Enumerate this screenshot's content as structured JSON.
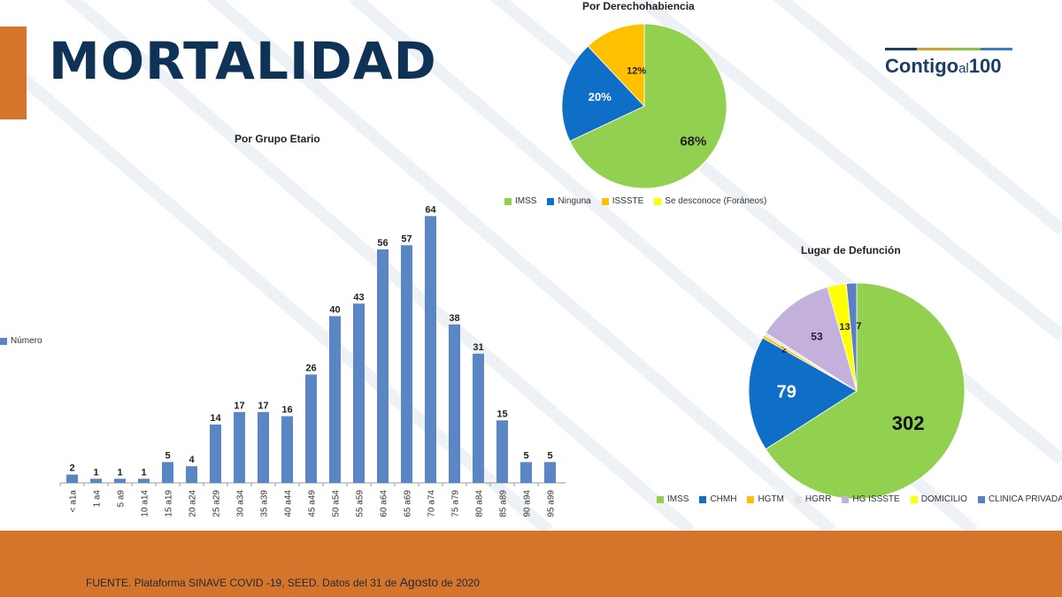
{
  "title": "MORTALIDAD",
  "logo": {
    "main": "Contigo",
    "small": "al",
    "num": "100",
    "bar_colors": [
      "#1e3d64",
      "#d4a02b",
      "#8ac04a",
      "#3a7fc1"
    ]
  },
  "footer": {
    "text_a": "FUENTE. Plataforma SINAVE COVID -19, SEED. Datos del 31 de ",
    "text_b": "Agosto",
    "text_c": " de 2020"
  },
  "chart_data": [
    {
      "type": "bar",
      "title": "Por Grupo Etario",
      "categories": [
        "< a1a",
        "1 a4",
        "5 a9",
        "10 a14",
        "15 a19",
        "20 a24",
        "25 a29",
        "30 a34",
        "35 a39",
        "40 a44",
        "45 a49",
        "50 a54",
        "55 a59",
        "60 a64",
        "65 a69",
        "70 a74",
        "75 a79",
        "80 a84",
        "85 a89",
        "90 a94",
        "95 a99"
      ],
      "series": [
        {
          "name": "Número",
          "values": [
            2,
            1,
            1,
            1,
            5,
            4,
            14,
            17,
            17,
            16,
            26,
            40,
            43,
            56,
            57,
            64,
            38,
            31,
            15,
            5,
            5
          ]
        }
      ],
      "ylim": [
        0,
        70
      ],
      "color": "#5b86c4",
      "legend": "left"
    },
    {
      "type": "pie",
      "title": "Por Derechohabiencia",
      "labels": [
        "IMSS",
        "Ninguna",
        "ISSSTE",
        "Se desconoce (Foráneos)"
      ],
      "values": [
        68,
        20,
        12,
        0
      ],
      "display": [
        "68%",
        "20%",
        "12%",
        "0%"
      ],
      "colors": [
        "#92d050",
        "#0f6fc6",
        "#ffc000",
        "#ffff00"
      ],
      "legend": "bottom"
    },
    {
      "type": "pie",
      "title": "Lugar de Defunción",
      "labels": [
        "IMSS",
        "CHMH",
        "HGTM",
        "HGRR",
        "HG ISSSTE",
        "DOMICILIO",
        "CLINICA PRIVADA"
      ],
      "values": [
        302,
        79,
        2,
        2,
        53,
        13,
        7
      ],
      "display": [
        "302",
        "79",
        "2",
        "2",
        "53",
        "13",
        "7"
      ],
      "colors": [
        "#92d050",
        "#0f6fc6",
        "#ffc000",
        "#e6e6e6",
        "#c4b0dc",
        "#ffff00",
        "#5b7fc4"
      ],
      "legend": "bottom"
    }
  ]
}
